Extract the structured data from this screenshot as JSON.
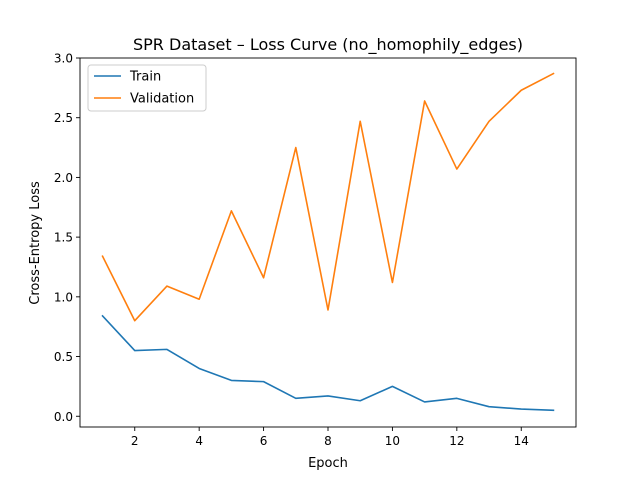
{
  "chart_data": {
    "type": "line",
    "title": "SPR Dataset – Loss Curve (no_homophily_edges)",
    "xlabel": "Epoch",
    "ylabel": "Cross-Entropy Loss",
    "xlim": [
      0.3,
      15.7
    ],
    "ylim": [
      -0.09,
      3.0
    ],
    "xticks": [
      2,
      4,
      6,
      8,
      10,
      12,
      14
    ],
    "yticks": [
      0.0,
      0.5,
      1.0,
      1.5,
      2.0,
      2.5,
      3.0
    ],
    "ytick_labels": [
      "0.0",
      "0.5",
      "1.0",
      "1.5",
      "2.0",
      "2.5",
      "3.0"
    ],
    "grid": false,
    "legend_position": "upper-left",
    "x": [
      1,
      2,
      3,
      4,
      5,
      6,
      7,
      8,
      9,
      10,
      11,
      12,
      13,
      14,
      15
    ],
    "series": [
      {
        "name": "Train",
        "color": "#1f77b4",
        "values": [
          0.84,
          0.55,
          0.56,
          0.4,
          0.3,
          0.29,
          0.15,
          0.17,
          0.13,
          0.25,
          0.12,
          0.15,
          0.08,
          0.06,
          0.05
        ]
      },
      {
        "name": "Validation",
        "color": "#ff7f0e",
        "values": [
          1.34,
          0.8,
          1.09,
          0.98,
          1.72,
          1.16,
          2.25,
          0.89,
          2.47,
          1.12,
          2.64,
          2.07,
          2.47,
          2.73,
          2.87
        ]
      }
    ]
  }
}
